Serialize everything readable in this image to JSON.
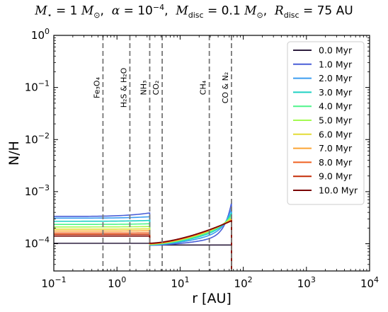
{
  "chart_data": {
    "type": "line",
    "title": "M⋆ = 1 M⊙,  α = 10⁻⁴,  M_disc = 0.1 M⊙,  R_disc = 75 AU",
    "xlabel": "r [AU]",
    "ylabel": "N/H",
    "xscale": "log",
    "yscale": "log",
    "xlim": [
      0.1,
      10000
    ],
    "ylim": [
      3e-05,
      1
    ],
    "x_ticks": [
      {
        "value": 0.1,
        "base": "10",
        "exp": "−1"
      },
      {
        "value": 1,
        "base": "10",
        "exp": "0"
      },
      {
        "value": 10,
        "base": "10",
        "exp": "1"
      },
      {
        "value": 100,
        "base": "10",
        "exp": "2"
      },
      {
        "value": 1000,
        "base": "10",
        "exp": "3"
      },
      {
        "value": 10000,
        "base": "10",
        "exp": "4"
      }
    ],
    "y_ticks": [
      {
        "value": 0.0001,
        "base": "10",
        "exp": "−4"
      },
      {
        "value": 0.001,
        "base": "10",
        "exp": "−3"
      },
      {
        "value": 0.01,
        "base": "10",
        "exp": "−2"
      },
      {
        "value": 0.1,
        "base": "10",
        "exp": "−1"
      },
      {
        "value": 1,
        "base": "10",
        "exp": "0"
      }
    ],
    "grid": false,
    "legend_position": "top-right",
    "snowlines": [
      {
        "label": "Fe₃O₄",
        "r": 0.6
      },
      {
        "label": "H₂S & H₂O",
        "r": 1.6
      },
      {
        "label": "NH₃",
        "r": 3.3
      },
      {
        "label": "CO₂",
        "r": 5.2
      },
      {
        "label": "CH₄",
        "r": 29
      },
      {
        "label": "CO & N₂",
        "r": 65
      }
    ],
    "series": [
      {
        "name": "0.0 Myr",
        "color": "#2d1e3e",
        "inner": 0.000102,
        "mid": 9.45e-05,
        "mid_end": 9.45e-05,
        "mid_bump": 0,
        "peak": 9.45e-05,
        "x_last": 65
      },
      {
        "name": "1.0 Myr",
        "color": "#4a5fd7",
        "inner": 0.000335,
        "inner_end": 0.00039,
        "mid": 9.35e-05,
        "mid_end": 0.000138,
        "mid_bump": 0.8,
        "peak": 0.00061,
        "x_last": 65
      },
      {
        "name": "2.0 Myr",
        "color": "#3c9ef0",
        "inner": 0.00031,
        "inner_end": 0.00033,
        "mid": 9.45e-05,
        "mid_end": 0.000175,
        "mid_bump": 0.7,
        "peak": 0.00047,
        "x_last": 65
      },
      {
        "name": "3.0 Myr",
        "color": "#1fd1c3",
        "inner": 0.00027,
        "inner_end": 0.00028,
        "mid": 9.55e-05,
        "mid_end": 0.000205,
        "mid_bump": 0.6,
        "peak": 0.00039,
        "x_last": 65
      },
      {
        "name": "4.0 Myr",
        "color": "#4ff48a",
        "inner": 0.000235,
        "inner_end": 0.000242,
        "mid": 9.65e-05,
        "mid_end": 0.000228,
        "mid_bump": 0.5,
        "peak": 0.00035,
        "x_last": 65
      },
      {
        "name": "5.0 Myr",
        "color": "#a4fa52",
        "inner": 0.00021,
        "inner_end": 0.000214,
        "mid": 9.75e-05,
        "mid_end": 0.000245,
        "mid_bump": 0.4,
        "peak": 0.00032,
        "x_last": 65
      },
      {
        "name": "6.0 Myr",
        "color": "#e3dc37",
        "inner": 0.00019,
        "inner_end": 0.000193,
        "mid": 9.85e-05,
        "mid_end": 0.000255,
        "mid_bump": 0.3,
        "peak": 0.0003,
        "x_last": 65
      },
      {
        "name": "7.0 Myr",
        "color": "#fca535",
        "inner": 0.000175,
        "inner_end": 0.000177,
        "mid": 9.95e-05,
        "mid_end": 0.000262,
        "mid_bump": 0.2,
        "peak": 0.00029,
        "x_last": 65
      },
      {
        "name": "8.0 Myr",
        "color": "#f06120",
        "inner": 0.00016,
        "inner_end": 0.000161,
        "mid": 0.0001005,
        "mid_end": 0.000268,
        "mid_bump": 0.1,
        "peak": 0.00028,
        "x_last": 65
      },
      {
        "name": "9.0 Myr",
        "color": "#c42c07",
        "inner": 0.00015,
        "inner_end": 0.00015,
        "mid": 0.0001015,
        "mid_end": 0.000272,
        "mid_bump": 0.05,
        "peak": 0.000275,
        "x_last": 65
      },
      {
        "name": "10.0 Myr",
        "color": "#7a0403",
        "inner": 0.00014,
        "inner_end": 0.00014,
        "mid": 0.0001025,
        "mid_end": 0.000275,
        "mid_bump": 0,
        "peak": 0.000275,
        "x_last": 65
      }
    ]
  }
}
